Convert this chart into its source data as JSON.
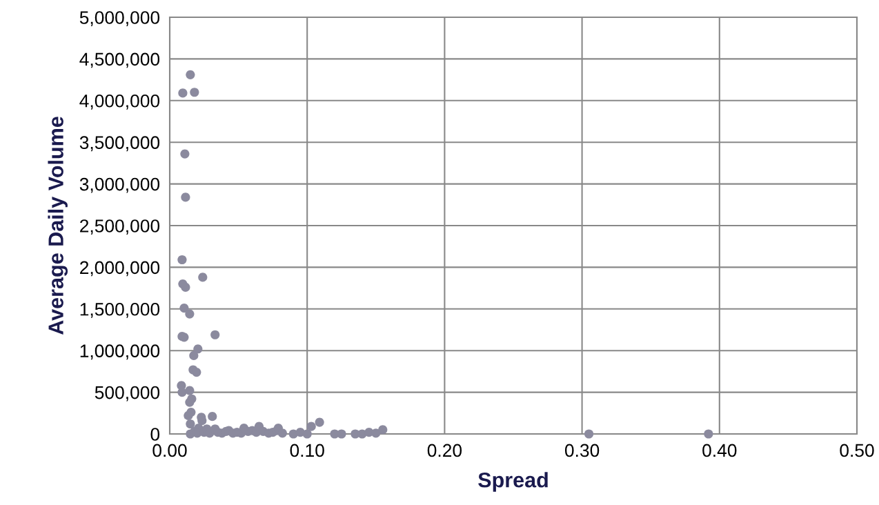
{
  "chart_data": {
    "type": "scatter",
    "xlabel": "Spread",
    "ylabel": "Average Daily Volume",
    "x": [
      0.015,
      0.0095,
      0.018,
      0.011,
      0.0115,
      0.009,
      0.0095,
      0.0115,
      0.024,
      0.0105,
      0.0145,
      0.009,
      0.0105,
      0.033,
      0.0205,
      0.0175,
      0.017,
      0.0195,
      0.0085,
      0.009,
      0.0145,
      0.016,
      0.0145,
      0.0155,
      0.0135,
      0.015,
      0.023,
      0.0235,
      0.031,
      0.021,
      0.015,
      0.018,
      0.02,
      0.025,
      0.027,
      0.029,
      0.033,
      0.035,
      0.038,
      0.041,
      0.043,
      0.046,
      0.049,
      0.052,
      0.054,
      0.057,
      0.06,
      0.063,
      0.065,
      0.068,
      0.072,
      0.075,
      0.078,
      0.079,
      0.082,
      0.09,
      0.095,
      0.1,
      0.103,
      0.109,
      0.12,
      0.125,
      0.135,
      0.14,
      0.145,
      0.15,
      0.155,
      0.305,
      0.392
    ],
    "values": [
      4310000,
      4090000,
      4100000,
      3360000,
      2840000,
      2090000,
      1800000,
      1760000,
      1880000,
      1510000,
      1440000,
      1170000,
      1160000,
      1190000,
      1020000,
      940000,
      770000,
      740000,
      580000,
      500000,
      520000,
      420000,
      380000,
      260000,
      220000,
      120000,
      200000,
      160000,
      210000,
      70000,
      0,
      30000,
      10000,
      20000,
      60000,
      10000,
      60000,
      20000,
      10000,
      30000,
      40000,
      10000,
      20000,
      10000,
      70000,
      30000,
      40000,
      20000,
      90000,
      30000,
      10000,
      20000,
      40000,
      70000,
      10000,
      0,
      20000,
      0,
      90000,
      140000,
      0,
      0,
      0,
      0,
      20000,
      10000,
      50000,
      0,
      0
    ],
    "color": "#8b8a9e",
    "marker": "circle",
    "grid": true,
    "xlim": [
      0,
      0.5
    ],
    "xticks": [
      {
        "value": 0,
        "label": "0.00"
      },
      {
        "value": 0.1,
        "label": "0.10"
      },
      {
        "value": 0.2,
        "label": "0.20"
      },
      {
        "value": 0.3,
        "label": "0.30"
      },
      {
        "value": 0.4,
        "label": "0.40"
      },
      {
        "value": 0.5,
        "label": "0.50"
      }
    ],
    "ylim": [
      0,
      5000000
    ],
    "yticks": [
      {
        "value": 0,
        "label": "0"
      },
      {
        "value": 500000,
        "label": "500,000"
      },
      {
        "value": 1000000,
        "label": "1,000,000"
      },
      {
        "value": 1500000,
        "label": "1,500,000"
      },
      {
        "value": 2000000,
        "label": "2,000,000"
      },
      {
        "value": 2500000,
        "label": "2,500,000"
      },
      {
        "value": 3000000,
        "label": "3,000,000"
      },
      {
        "value": 3500000,
        "label": "3,500,000"
      },
      {
        "value": 4000000,
        "label": "4,000,000"
      },
      {
        "value": 4500000,
        "label": "4,500,000"
      },
      {
        "value": 5000000,
        "label": "5,000,000"
      }
    ]
  }
}
